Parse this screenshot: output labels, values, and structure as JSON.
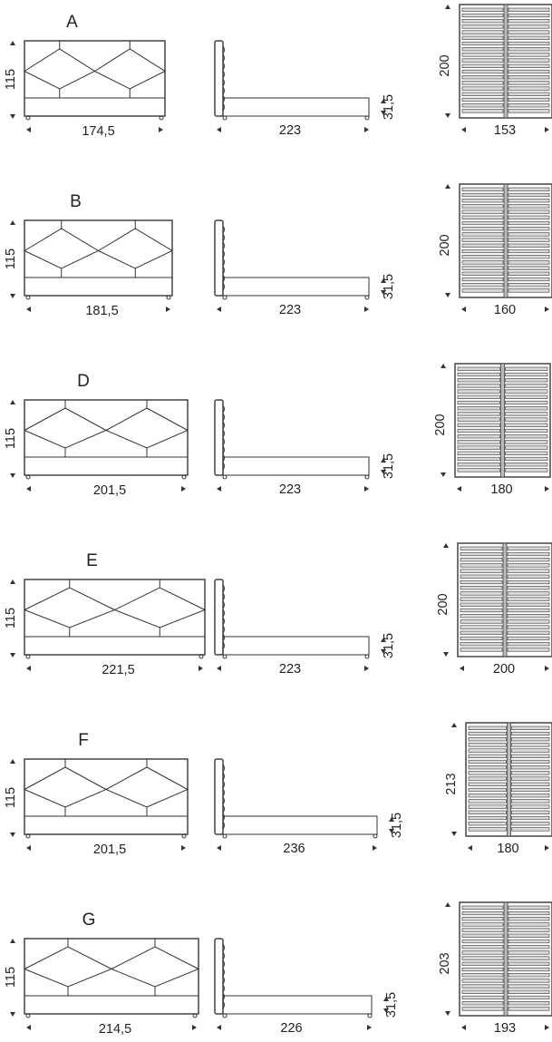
{
  "units": "cm",
  "models": [
    {
      "label": "A",
      "width": "174,5",
      "height": "115",
      "length": "223",
      "base_height": "31,5",
      "slat_length": "200",
      "slat_width": "153"
    },
    {
      "label": "B",
      "width": "181,5",
      "height": "115",
      "length": "223",
      "base_height": "31,5",
      "slat_length": "200",
      "slat_width": "160"
    },
    {
      "label": "D",
      "width": "201,5",
      "height": "115",
      "length": "223",
      "base_height": "31,5",
      "slat_length": "200",
      "slat_width": "180"
    },
    {
      "label": "E",
      "width": "221,5",
      "height": "115",
      "length": "223",
      "base_height": "31,5",
      "slat_length": "200",
      "slat_width": "200"
    },
    {
      "label": "F",
      "width": "201,5",
      "height": "115",
      "length": "236",
      "base_height": "31,5",
      "slat_length": "213",
      "slat_width": "180"
    },
    {
      "label": "G",
      "width": "214,5",
      "height": "115",
      "length": "226",
      "base_height": "31,5",
      "slat_length": "203",
      "slat_width": "193"
    }
  ],
  "colors": {
    "line": "#333333",
    "slat_fill": "#d9d9d9",
    "frame": "#444444",
    "background": "#ffffff"
  }
}
